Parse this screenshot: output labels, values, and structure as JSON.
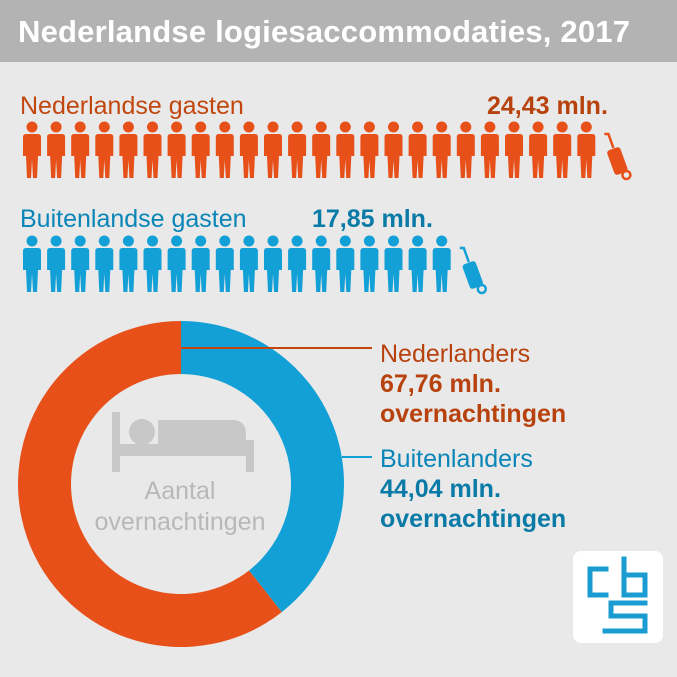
{
  "title": "Nederlandse logiesaccommodaties, 2017",
  "guests": {
    "domestic": {
      "label": "Nederlandse gasten",
      "value": "24,43 mln.",
      "color": "#e8501a"
    },
    "foreign": {
      "label": "Buitenlandse gasten",
      "value": "17,85 mln.",
      "color": "#13a0d6"
    }
  },
  "nights": {
    "center_label_line1": "Aantal",
    "center_label_line2": "overnachtingen",
    "domestic": {
      "name": "Nederlanders",
      "value_line1": "67,76 mln.",
      "value_line2": "overnachtingen",
      "color": "#e8501a",
      "text_color": "#b8420e"
    },
    "foreign": {
      "name": "Buitenlanders",
      "value_line1": "44,04 mln.",
      "value_line2": "overnachtingen",
      "color": "#13a0d6",
      "text_color": "#0a7aa6"
    }
  },
  "chart_data": [
    {
      "type": "bar",
      "title": "",
      "categories": [
        "Nederlandse gasten",
        "Buitenlandse gasten"
      ],
      "values": [
        24.43,
        17.85
      ],
      "unit": "mln."
    },
    {
      "type": "pie",
      "title": "Aantal overnachtingen",
      "categories": [
        "Nederlanders",
        "Buitenlanders"
      ],
      "values": [
        67.76,
        44.04
      ],
      "unit": "mln. overnachtingen"
    }
  ],
  "icons": [
    "person-icon",
    "suitcase-icon",
    "bed-icon",
    "cbs-logo-icon"
  ],
  "logo_text": "cbs"
}
